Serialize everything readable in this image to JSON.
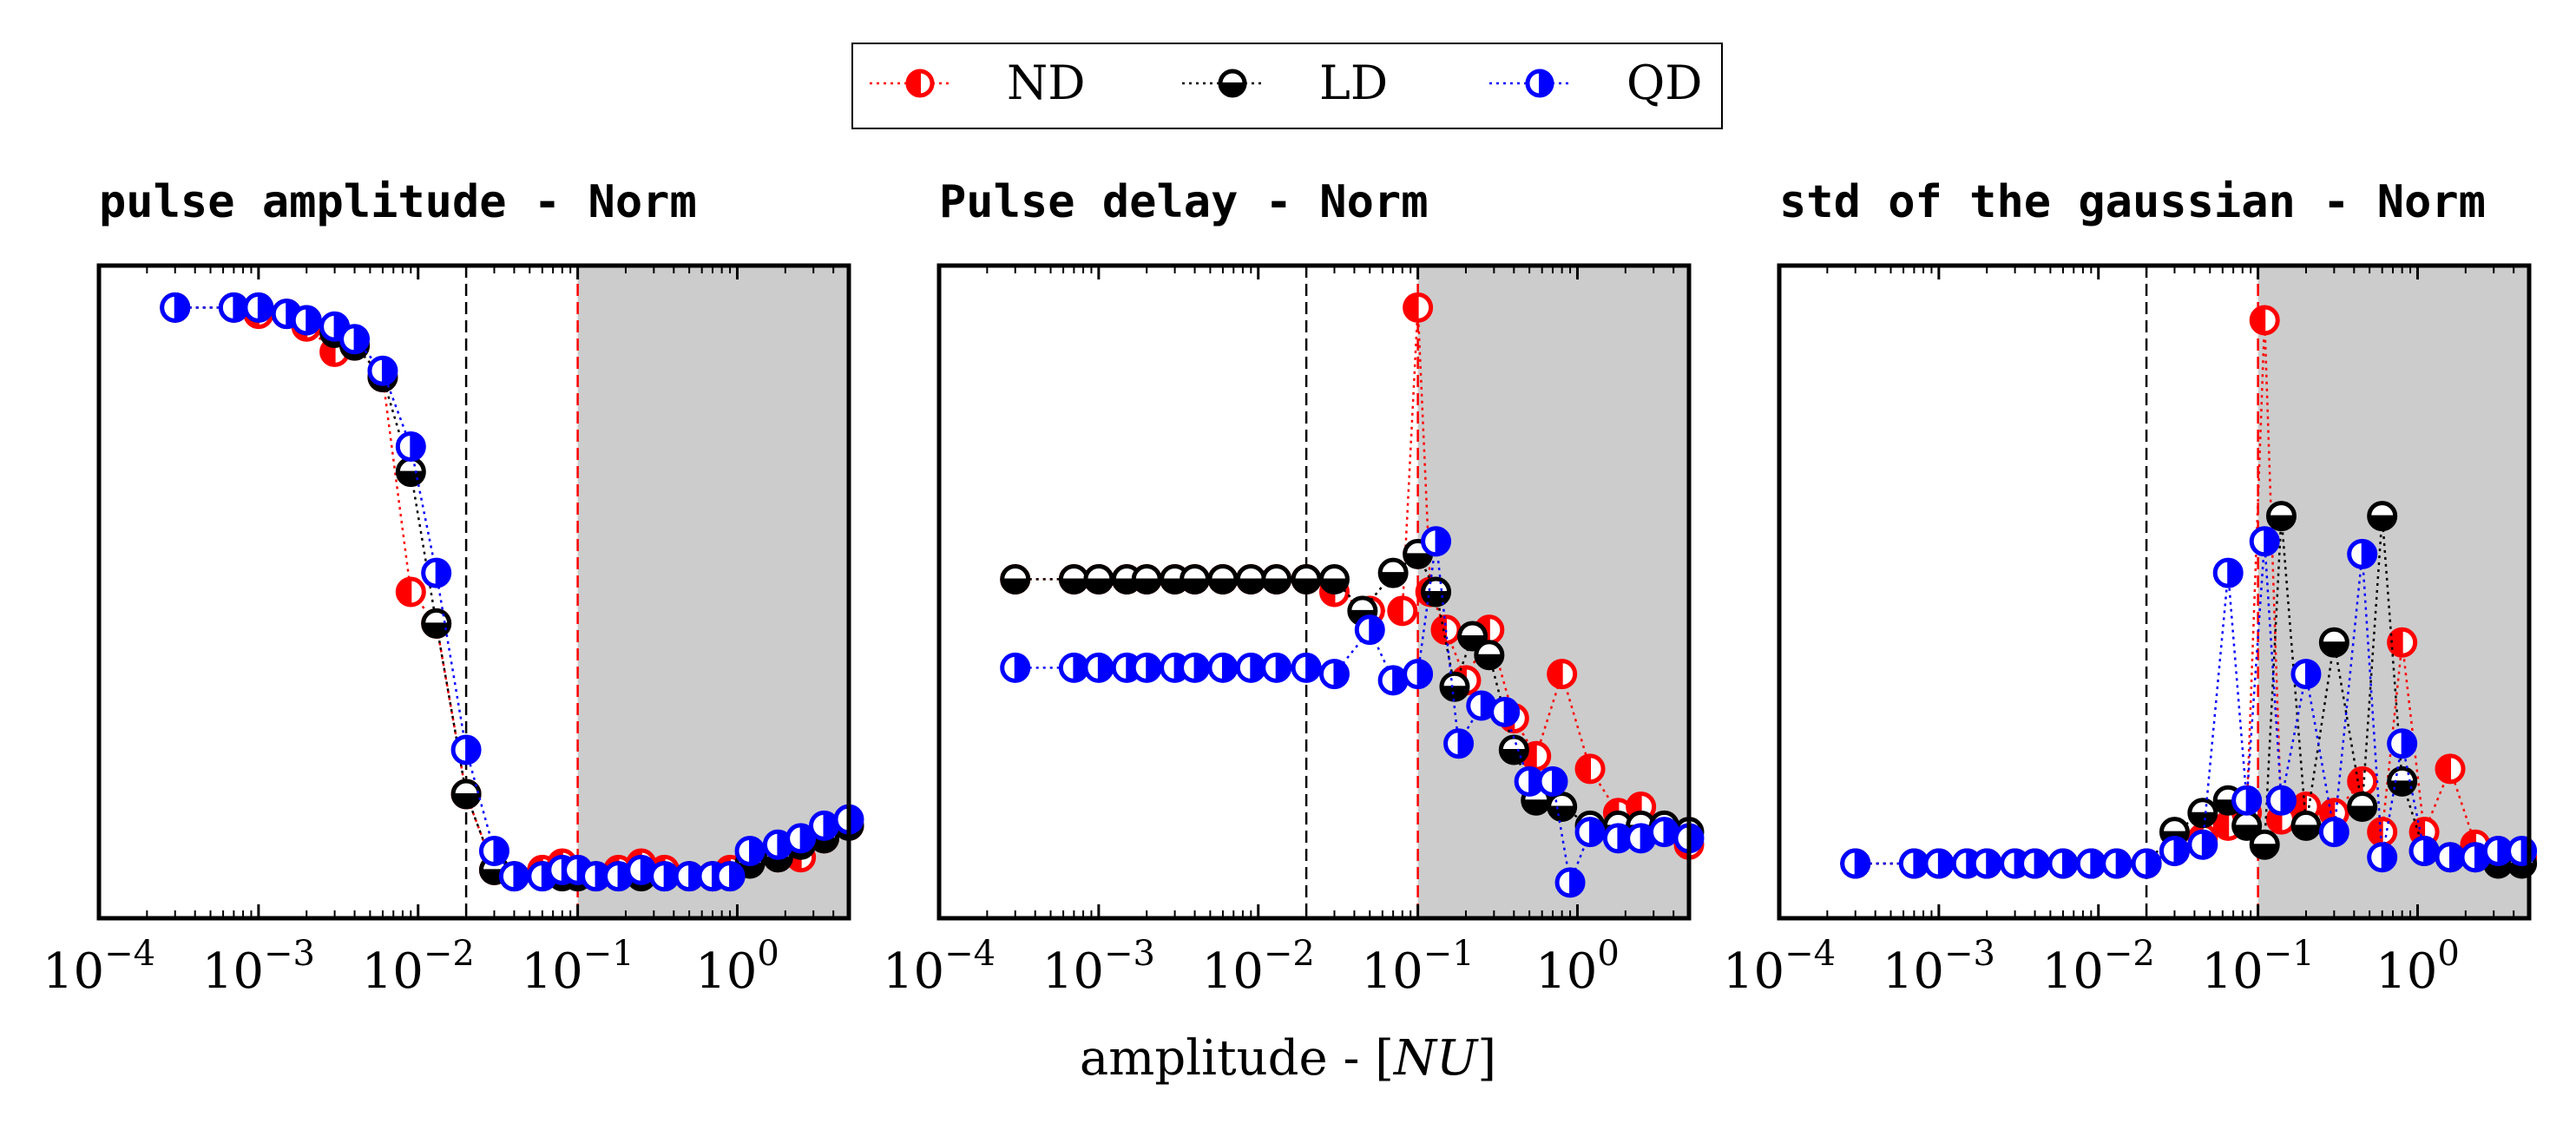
{
  "figure": {
    "xlabel": "amplitude - [NU]",
    "xlabel_main": "amplitude - [",
    "xlabel_italic": "NU",
    "xlabel_close": "]",
    "legend": {
      "placement": "top-center",
      "entries": [
        {
          "name": "ND",
          "color": "#ff0000",
          "fill": "left"
        },
        {
          "name": "LD",
          "color": "#000000",
          "fill": "bottom"
        },
        {
          "name": "QD",
          "color": "#0000ff",
          "fill": "right"
        }
      ]
    }
  },
  "chart_data": [
    {
      "type": "scatter",
      "title": "pulse amplitude - Norm",
      "xscale": "log",
      "xlim": [
        0.0001,
        5
      ],
      "ylim": [
        0,
        1
      ],
      "yticks": false,
      "xtick_labels": [
        {
          "base": "10",
          "exp": "−4",
          "value": 0.0001
        },
        {
          "base": "10",
          "exp": "−3",
          "value": 0.001
        },
        {
          "base": "10",
          "exp": "−2",
          "value": 0.01
        },
        {
          "base": "10",
          "exp": "−1",
          "value": 0.1
        },
        {
          "base": "10",
          "exp": "0",
          "value": 1
        }
      ],
      "vlines": [
        {
          "x": 0.02,
          "color": "#000000"
        },
        {
          "x": 0.1,
          "color": "#ff0000"
        }
      ],
      "shade_from": 0.1,
      "series": [
        {
          "name": "ND",
          "color": "#ff0000",
          "x": [
            0.0003,
            0.0007,
            0.001,
            0.0015,
            0.002,
            0.003,
            0.004,
            0.006,
            0.009,
            0.013,
            0.02,
            0.03,
            0.04,
            0.06,
            0.08,
            0.1,
            0.13,
            0.18,
            0.25,
            0.35,
            0.5,
            0.7,
            0.9,
            1.2,
            1.8,
            2.5,
            3.5,
            5.0
          ],
          "y": [
            0.95,
            0.95,
            0.94,
            0.94,
            0.92,
            0.88,
            0.89,
            0.84,
            0.5,
            0.45,
            0.18,
            0.06,
            0.05,
            0.06,
            0.07,
            0.06,
            0.05,
            0.06,
            0.07,
            0.06,
            0.05,
            0.05,
            0.06,
            0.08,
            0.08,
            0.08,
            0.11,
            0.13
          ]
        },
        {
          "name": "LD",
          "color": "#000000",
          "x": [
            0.0003,
            0.0007,
            0.001,
            0.0015,
            0.002,
            0.003,
            0.004,
            0.006,
            0.009,
            0.013,
            0.02,
            0.03,
            0.04,
            0.06,
            0.08,
            0.1,
            0.13,
            0.18,
            0.25,
            0.35,
            0.5,
            0.7,
            0.9,
            1.2,
            1.8,
            2.5,
            3.5,
            5.0
          ],
          "y": [
            0.95,
            0.95,
            0.95,
            0.94,
            0.93,
            0.91,
            0.89,
            0.84,
            0.69,
            0.45,
            0.18,
            0.06,
            0.05,
            0.05,
            0.05,
            0.05,
            0.05,
            0.05,
            0.05,
            0.05,
            0.05,
            0.05,
            0.05,
            0.07,
            0.08,
            0.1,
            0.11,
            0.13
          ]
        },
        {
          "name": "QD",
          "color": "#0000ff",
          "x": [
            0.0003,
            0.0007,
            0.001,
            0.0015,
            0.002,
            0.003,
            0.004,
            0.006,
            0.009,
            0.013,
            0.02,
            0.03,
            0.04,
            0.06,
            0.08,
            0.1,
            0.13,
            0.18,
            0.25,
            0.35,
            0.5,
            0.7,
            0.9,
            1.2,
            1.8,
            2.5,
            3.5,
            5.0
          ],
          "y": [
            0.95,
            0.95,
            0.95,
            0.94,
            0.93,
            0.92,
            0.9,
            0.85,
            0.73,
            0.53,
            0.25,
            0.09,
            0.05,
            0.05,
            0.06,
            0.06,
            0.05,
            0.05,
            0.06,
            0.05,
            0.05,
            0.05,
            0.05,
            0.09,
            0.1,
            0.11,
            0.13,
            0.14
          ]
        }
      ]
    },
    {
      "type": "scatter",
      "title": "Pulse delay - Norm",
      "xscale": "log",
      "xlim": [
        0.0001,
        5
      ],
      "ylim": [
        0,
        1
      ],
      "yticks": false,
      "xtick_labels": [
        {
          "base": "10",
          "exp": "−4",
          "value": 0.0001
        },
        {
          "base": "10",
          "exp": "−3",
          "value": 0.001
        },
        {
          "base": "10",
          "exp": "−2",
          "value": 0.01
        },
        {
          "base": "10",
          "exp": "−1",
          "value": 0.1
        },
        {
          "base": "10",
          "exp": "0",
          "value": 1
        }
      ],
      "vlines": [
        {
          "x": 0.02,
          "color": "#000000"
        },
        {
          "x": 0.1,
          "color": "#ff0000"
        }
      ],
      "shade_from": 0.1,
      "series": [
        {
          "name": "ND",
          "color": "#ff0000",
          "x": [
            0.0003,
            0.0007,
            0.001,
            0.0015,
            0.002,
            0.003,
            0.004,
            0.006,
            0.009,
            0.013,
            0.02,
            0.03,
            0.05,
            0.08,
            0.1,
            0.12,
            0.15,
            0.2,
            0.28,
            0.4,
            0.55,
            0.8,
            1.2,
            1.8,
            2.5,
            3.5,
            5.0
          ],
          "y": [
            0.52,
            0.52,
            0.52,
            0.52,
            0.52,
            0.52,
            0.52,
            0.52,
            0.52,
            0.52,
            0.52,
            0.5,
            0.47,
            0.47,
            0.95,
            0.5,
            0.44,
            0.36,
            0.44,
            0.3,
            0.24,
            0.37,
            0.22,
            0.15,
            0.16,
            0.13,
            0.1
          ]
        },
        {
          "name": "LD",
          "color": "#000000",
          "x": [
            0.0003,
            0.0007,
            0.001,
            0.0015,
            0.002,
            0.003,
            0.004,
            0.006,
            0.009,
            0.013,
            0.02,
            0.03,
            0.045,
            0.07,
            0.1,
            0.13,
            0.17,
            0.22,
            0.28,
            0.4,
            0.55,
            0.8,
            1.2,
            1.8,
            2.5,
            3.5,
            5.0
          ],
          "y": [
            0.52,
            0.52,
            0.52,
            0.52,
            0.52,
            0.52,
            0.52,
            0.52,
            0.52,
            0.52,
            0.52,
            0.52,
            0.47,
            0.53,
            0.56,
            0.5,
            0.35,
            0.43,
            0.4,
            0.25,
            0.17,
            0.16,
            0.13,
            0.13,
            0.13,
            0.13,
            0.12
          ]
        },
        {
          "name": "QD",
          "color": "#0000ff",
          "x": [
            0.0003,
            0.0007,
            0.001,
            0.0015,
            0.002,
            0.003,
            0.004,
            0.006,
            0.009,
            0.013,
            0.02,
            0.03,
            0.05,
            0.07,
            0.1,
            0.13,
            0.18,
            0.25,
            0.35,
            0.5,
            0.7,
            0.9,
            1.2,
            1.8,
            2.5,
            3.5,
            5.0
          ],
          "y": [
            0.38,
            0.38,
            0.38,
            0.38,
            0.38,
            0.38,
            0.38,
            0.38,
            0.38,
            0.38,
            0.38,
            0.37,
            0.44,
            0.36,
            0.37,
            0.58,
            0.26,
            0.32,
            0.31,
            0.2,
            0.2,
            0.04,
            0.12,
            0.11,
            0.11,
            0.12,
            0.11
          ]
        }
      ]
    },
    {
      "type": "scatter",
      "title": "std of the gaussian - Norm",
      "xscale": "log",
      "xlim": [
        0.0001,
        5
      ],
      "ylim": [
        0,
        1
      ],
      "yticks": false,
      "xtick_labels": [
        {
          "base": "10",
          "exp": "−4",
          "value": 0.0001
        },
        {
          "base": "10",
          "exp": "−3",
          "value": 0.001
        },
        {
          "base": "10",
          "exp": "−2",
          "value": 0.01
        },
        {
          "base": "10",
          "exp": "−1",
          "value": 0.1
        },
        {
          "base": "10",
          "exp": "0",
          "value": 1
        }
      ],
      "vlines": [
        {
          "x": 0.02,
          "color": "#000000"
        },
        {
          "x": 0.1,
          "color": "#ff0000"
        }
      ],
      "shade_from": 0.1,
      "series": [
        {
          "name": "ND",
          "color": "#ff0000",
          "x": [
            0.0003,
            0.0007,
            0.001,
            0.0015,
            0.002,
            0.003,
            0.004,
            0.006,
            0.009,
            0.013,
            0.02,
            0.03,
            0.045,
            0.065,
            0.085,
            0.11,
            0.14,
            0.2,
            0.3,
            0.45,
            0.6,
            0.8,
            1.1,
            1.6,
            2.3,
            3.2,
            4.5
          ],
          "y": [
            0.07,
            0.07,
            0.07,
            0.07,
            0.07,
            0.07,
            0.07,
            0.07,
            0.07,
            0.07,
            0.07,
            0.09,
            0.11,
            0.13,
            0.15,
            0.93,
            0.14,
            0.16,
            0.15,
            0.2,
            0.12,
            0.42,
            0.12,
            0.22,
            0.1,
            0.09,
            0.08
          ]
        },
        {
          "name": "LD",
          "color": "#000000",
          "x": [
            0.0003,
            0.0007,
            0.001,
            0.0015,
            0.002,
            0.003,
            0.004,
            0.006,
            0.009,
            0.013,
            0.02,
            0.03,
            0.045,
            0.065,
            0.085,
            0.11,
            0.14,
            0.2,
            0.3,
            0.45,
            0.6,
            0.8,
            1.1,
            1.6,
            2.3,
            3.2,
            4.5
          ],
          "y": [
            0.07,
            0.07,
            0.07,
            0.07,
            0.07,
            0.07,
            0.07,
            0.07,
            0.07,
            0.07,
            0.07,
            0.12,
            0.15,
            0.17,
            0.13,
            0.1,
            0.62,
            0.13,
            0.42,
            0.16,
            0.62,
            0.2,
            0.09,
            0.08,
            0.08,
            0.07,
            0.07
          ]
        },
        {
          "name": "QD",
          "color": "#0000ff",
          "x": [
            0.0003,
            0.0007,
            0.001,
            0.0015,
            0.002,
            0.003,
            0.004,
            0.006,
            0.009,
            0.013,
            0.02,
            0.03,
            0.045,
            0.065,
            0.085,
            0.11,
            0.14,
            0.2,
            0.3,
            0.45,
            0.6,
            0.8,
            1.1,
            1.6,
            2.3,
            3.2,
            4.5
          ],
          "y": [
            0.07,
            0.07,
            0.07,
            0.07,
            0.07,
            0.07,
            0.07,
            0.07,
            0.07,
            0.07,
            0.07,
            0.09,
            0.1,
            0.53,
            0.17,
            0.58,
            0.17,
            0.37,
            0.12,
            0.56,
            0.08,
            0.26,
            0.09,
            0.08,
            0.08,
            0.09,
            0.09
          ]
        }
      ]
    }
  ]
}
